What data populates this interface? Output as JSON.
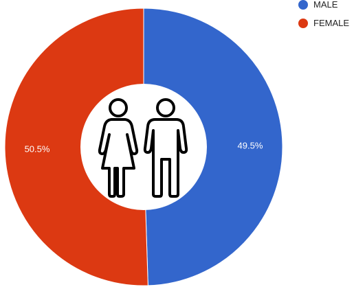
{
  "chart_data": {
    "type": "pie",
    "donut": true,
    "categories": [
      "MALE",
      "FEMALE"
    ],
    "values": [
      49.5,
      50.5
    ],
    "colors": [
      "#3366cc",
      "#dc3912"
    ],
    "data_labels": [
      "49.5%",
      "50.5%"
    ],
    "legend_position": "top-right",
    "center_icon": "female-male-people-icon"
  }
}
